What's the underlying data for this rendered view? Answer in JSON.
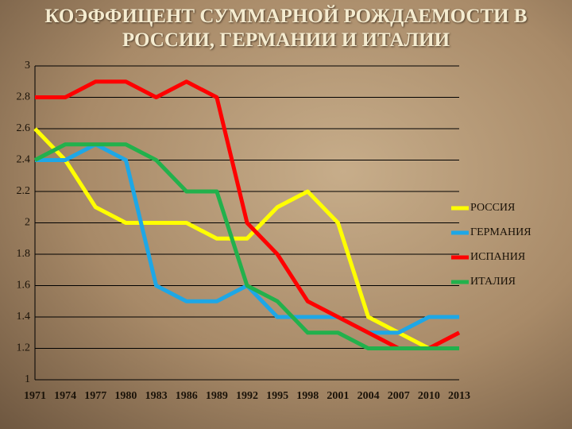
{
  "chart_data": {
    "type": "line",
    "title": "КОЭФФИЦЕНТ СУММАРНОЙ РОЖДАЕМОСТИ В РОССИИ, ГЕРМАНИИ И ИТАЛИИ",
    "categories": [
      "1971",
      "1974",
      "1977",
      "1980",
      "1983",
      "1986",
      "1989",
      "1992",
      "1995",
      "1998",
      "2001",
      "2004",
      "2007",
      "2010",
      "2013"
    ],
    "series": [
      {
        "name": "РОССИЯ",
        "color": "#ffff00",
        "values": [
          2.6,
          2.4,
          2.1,
          2.0,
          2.0,
          2.0,
          1.9,
          1.9,
          2.1,
          2.2,
          2.0,
          1.4,
          1.3,
          1.2,
          1.2
        ]
      },
      {
        "name": "ГЕРМАНИЯ",
        "color": "#1ea7e6",
        "values": [
          2.4,
          2.4,
          2.5,
          2.4,
          1.6,
          1.5,
          1.5,
          1.6,
          1.4,
          1.4,
          1.4,
          1.3,
          1.3,
          1.4,
          1.4
        ]
      },
      {
        "name": "ИСПАНИЯ",
        "color": "#ff0000",
        "values": [
          2.8,
          2.8,
          2.9,
          2.9,
          2.8,
          2.9,
          2.8,
          2.0,
          1.8,
          1.5,
          1.4,
          1.3,
          1.2,
          1.2,
          1.3
        ]
      },
      {
        "name": "ИТАЛИЯ",
        "color": "#22b14c",
        "values": [
          2.4,
          2.5,
          2.5,
          2.5,
          2.4,
          2.2,
          2.2,
          1.6,
          1.5,
          1.3,
          1.3,
          1.2,
          1.2,
          1.2,
          1.2
        ]
      }
    ],
    "ylim": [
      1,
      3
    ],
    "yticks": [
      1,
      1.2,
      1.4,
      1.6,
      1.8,
      2,
      2.2,
      2.4,
      2.6,
      2.8,
      3
    ],
    "grid": true,
    "legend": "right"
  }
}
